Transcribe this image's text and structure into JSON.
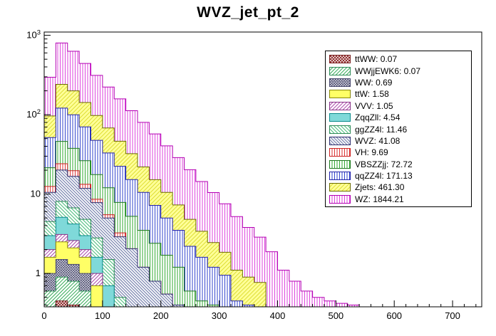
{
  "chart_data": {
    "type": "histogram-stack",
    "title": "WVZ_jet_pt_2",
    "x_range": [
      0,
      750
    ],
    "bin_width": 20,
    "x_ticks": [
      0,
      100,
      200,
      300,
      400,
      500,
      600,
      700
    ],
    "x_minor_step": 20,
    "y_scale": "log",
    "y_range": [
      0.38,
      1100
    ],
    "y_ticks": [
      {
        "v": 1,
        "base": "1",
        "exp": ""
      },
      {
        "v": 10,
        "base": "10",
        "exp": ""
      },
      {
        "v": 100,
        "base": "10",
        "exp": "2"
      },
      {
        "v": 1000,
        "base": "10",
        "exp": "3"
      }
    ],
    "legend": {
      "position": "top-right"
    },
    "series": [
      {
        "name": "ttWW",
        "label": "ttWW: 0.07",
        "line": "#7a1f1f",
        "fill": {
          "bg": "#ffffff",
          "lines": "#8b2222",
          "type": "x",
          "sp": 4,
          "sw": 1
        },
        "values": [
          0.3,
          0.45,
          0.4,
          0.3
        ]
      },
      {
        "name": "WWjjEWK6",
        "label": "WWjjEWK6: 0.07",
        "line": "#2e8b57",
        "fill": {
          "bg": "#ffffff",
          "lines": "#33aa55",
          "type": "d1",
          "sp": 3.5,
          "sw": 1
        },
        "values": [
          0.3,
          0.45,
          0.4,
          0.3
        ]
      },
      {
        "name": "WW",
        "label": "WW: 0.69",
        "line": "#44446a",
        "fill": {
          "bg": "#ffffff",
          "lines": "#555577",
          "type": "x",
          "sp": 3.5,
          "sw": 1
        },
        "values": [
          0.4,
          0.6,
          0.5,
          0.4,
          0.3
        ]
      },
      {
        "name": "ttW",
        "label": "ttW: 1.58",
        "line": "#88880a",
        "fill": {
          "bg": "#ffff66",
          "lines": "#ffff66",
          "type": "none",
          "sp": 4,
          "sw": 1
        },
        "values": [
          0.6,
          1.0,
          0.8,
          0.6,
          0.4,
          0.3
        ]
      },
      {
        "name": "VVV",
        "label": "VVV: 1.05",
        "line": "#883388",
        "fill": {
          "bg": "#ffffff",
          "lines": "#aa44aa",
          "type": "d1",
          "sp": 3.5,
          "sw": 1
        },
        "values": [
          0.4,
          0.6,
          0.5,
          0.4,
          0.3
        ]
      },
      {
        "name": "ZqqZll",
        "label": "ZqqZll: 4.54",
        "line": "#0a8b8b",
        "fill": {
          "bg": "#7fd9d9",
          "lines": "#7fd9d9",
          "type": "none",
          "sp": 4,
          "sw": 1
        },
        "values": [
          1.0,
          2.0,
          1.6,
          1.0,
          0.6,
          0.4
        ]
      },
      {
        "name": "ggZZ4l",
        "label": "ggZZ4l: 11.46",
        "line": "#2e8b57",
        "fill": {
          "bg": "#ffffff",
          "lines": "#44bb77",
          "type": "d2",
          "sp": 3.5,
          "sw": 1
        },
        "values": [
          1.5,
          3.0,
          2.5,
          1.8,
          1.2,
          0.8,
          0.5,
          0.35
        ]
      },
      {
        "name": "WVZ",
        "label": "WVZ: 41.08",
        "line": "#2f2f6f",
        "fill": {
          "bg": "#ffffff",
          "lines": "#7580ad",
          "type": "d2",
          "sp": 3,
          "sw": 1.2
        },
        "values": [
          6,
          12,
          10,
          7,
          5,
          3.5,
          2.4,
          1.7,
          1.2,
          0.8,
          0.55,
          0.4
        ]
      },
      {
        "name": "VH",
        "label": "VH: 9.69",
        "line": "#cc2222",
        "fill": {
          "bg": "#ffffff",
          "lines": "#dd3333",
          "type": "v",
          "sp": 3.5,
          "sw": 1
        },
        "values": [
          2,
          4,
          3,
          1.5,
          0.8,
          0.5,
          0.35
        ]
      },
      {
        "name": "VBSZZjj",
        "label": "VBSZZjj: 72.72",
        "line": "#1f7a1f",
        "fill": {
          "bg": "#ffffff",
          "lines": "#33aa33",
          "type": "v",
          "sp": 3.5,
          "sw": 1
        },
        "values": [
          9,
          22,
          18,
          13,
          9,
          6.5,
          4.6,
          3.2,
          2.3,
          1.6,
          1.15,
          0.8,
          0.6,
          0.45,
          0.4,
          0.35
        ]
      },
      {
        "name": "qqZZ4l",
        "label": "qqZZ4l: 171.13",
        "line": "#2222aa",
        "fill": {
          "bg": "#ffffff",
          "lines": "#3344cc",
          "type": "v",
          "sp": 3.5,
          "sw": 1
        },
        "values": [
          30,
          75,
          62,
          44,
          30,
          21,
          14.5,
          10,
          7,
          4.8,
          3.3,
          2.3,
          1.6,
          1.15,
          0.8,
          0.6,
          0.45,
          0.4,
          0.35
        ]
      },
      {
        "name": "Zjets",
        "label": "Zjets: 461.30",
        "line": "#6a6a00",
        "fill": {
          "bg": "#ffff99",
          "lines": "#dddd33",
          "type": "d1",
          "sp": 4,
          "sw": 1
        },
        "values": [
          45,
          120,
          100,
          72,
          50,
          35,
          24,
          17,
          11.5,
          8,
          5.5,
          3.8,
          2.6,
          1.8,
          1.25,
          0.9,
          0.65,
          0.5,
          0.42,
          0.38
        ]
      },
      {
        "name": "WZ",
        "label": "WZ: 1844.21",
        "line": "#b300b3",
        "fill": {
          "bg": "#ffffff",
          "lines": "#dd44dd",
          "type": "v",
          "sp": 3.5,
          "sw": 1
        },
        "values": [
          200,
          560,
          430,
          300,
          215,
          155,
          112,
          80,
          58,
          42,
          30,
          21.5,
          15.5,
          11,
          8,
          5.7,
          4.1,
          2.9,
          2.1,
          1.5,
          1.1,
          0.8,
          0.6,
          0.5,
          0.45,
          0.42,
          0.4
        ]
      }
    ]
  }
}
